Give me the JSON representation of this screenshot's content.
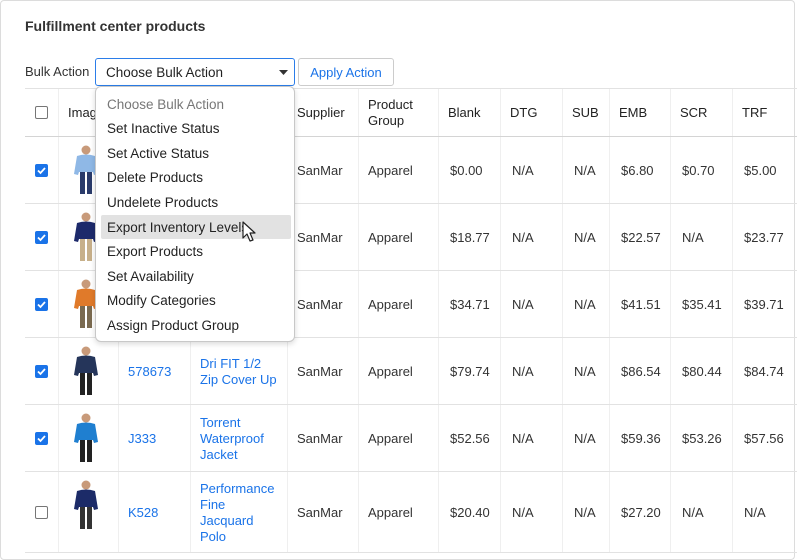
{
  "header": {
    "title": "Fulfillment center products"
  },
  "bulk_action": {
    "label": "Bulk Action",
    "selected": "Choose Bulk Action",
    "button": "Apply Action",
    "options": [
      "Choose Bulk Action",
      "Set Inactive Status",
      "Set Active Status",
      "Delete Products",
      "Undelete Products",
      "Export Inventory Levels",
      "Export Products",
      "Set Availability",
      "Modify Categories",
      "Assign Product Group"
    ],
    "highlighted": 5
  },
  "table": {
    "columns": [
      "Image",
      "Supplier",
      "Product Group",
      "Blank",
      "DTG",
      "SUB",
      "EMB",
      "SCR",
      "TRF"
    ],
    "rows": [
      {
        "checked": true,
        "supplier": "SanMar",
        "group": "Apparel",
        "prices": [
          "$0.00",
          "N/A",
          "N/A",
          "$6.80",
          "$0.70",
          "$5.00"
        ]
      },
      {
        "checked": true,
        "supplier": "SanMar",
        "group": "Apparel",
        "prices": [
          "$18.77",
          "N/A",
          "N/A",
          "$22.57",
          "N/A",
          "$23.77"
        ]
      },
      {
        "checked": true,
        "supplier": "SanMar",
        "group": "Apparel",
        "prices": [
          "$34.71",
          "N/A",
          "N/A",
          "$41.51",
          "$35.41",
          "$39.71"
        ]
      },
      {
        "checked": true,
        "sku": "578673",
        "name": "Dri FIT 1/2 Zip Cover Up",
        "supplier": "SanMar",
        "group": "Apparel",
        "prices": [
          "$79.74",
          "N/A",
          "N/A",
          "$86.54",
          "$80.44",
          "$84.74"
        ]
      },
      {
        "checked": true,
        "sku": "J333",
        "name": "Torrent Waterproof Jacket",
        "supplier": "SanMar",
        "group": "Apparel",
        "prices": [
          "$52.56",
          "N/A",
          "N/A",
          "$59.36",
          "$53.26",
          "$57.56"
        ]
      },
      {
        "checked": false,
        "sku": "K528",
        "name": "Performance Fine Jacquard Polo",
        "supplier": "SanMar",
        "group": "Apparel",
        "prices": [
          "$20.40",
          "N/A",
          "N/A",
          "$27.20",
          "N/A",
          "N/A"
        ]
      }
    ]
  }
}
